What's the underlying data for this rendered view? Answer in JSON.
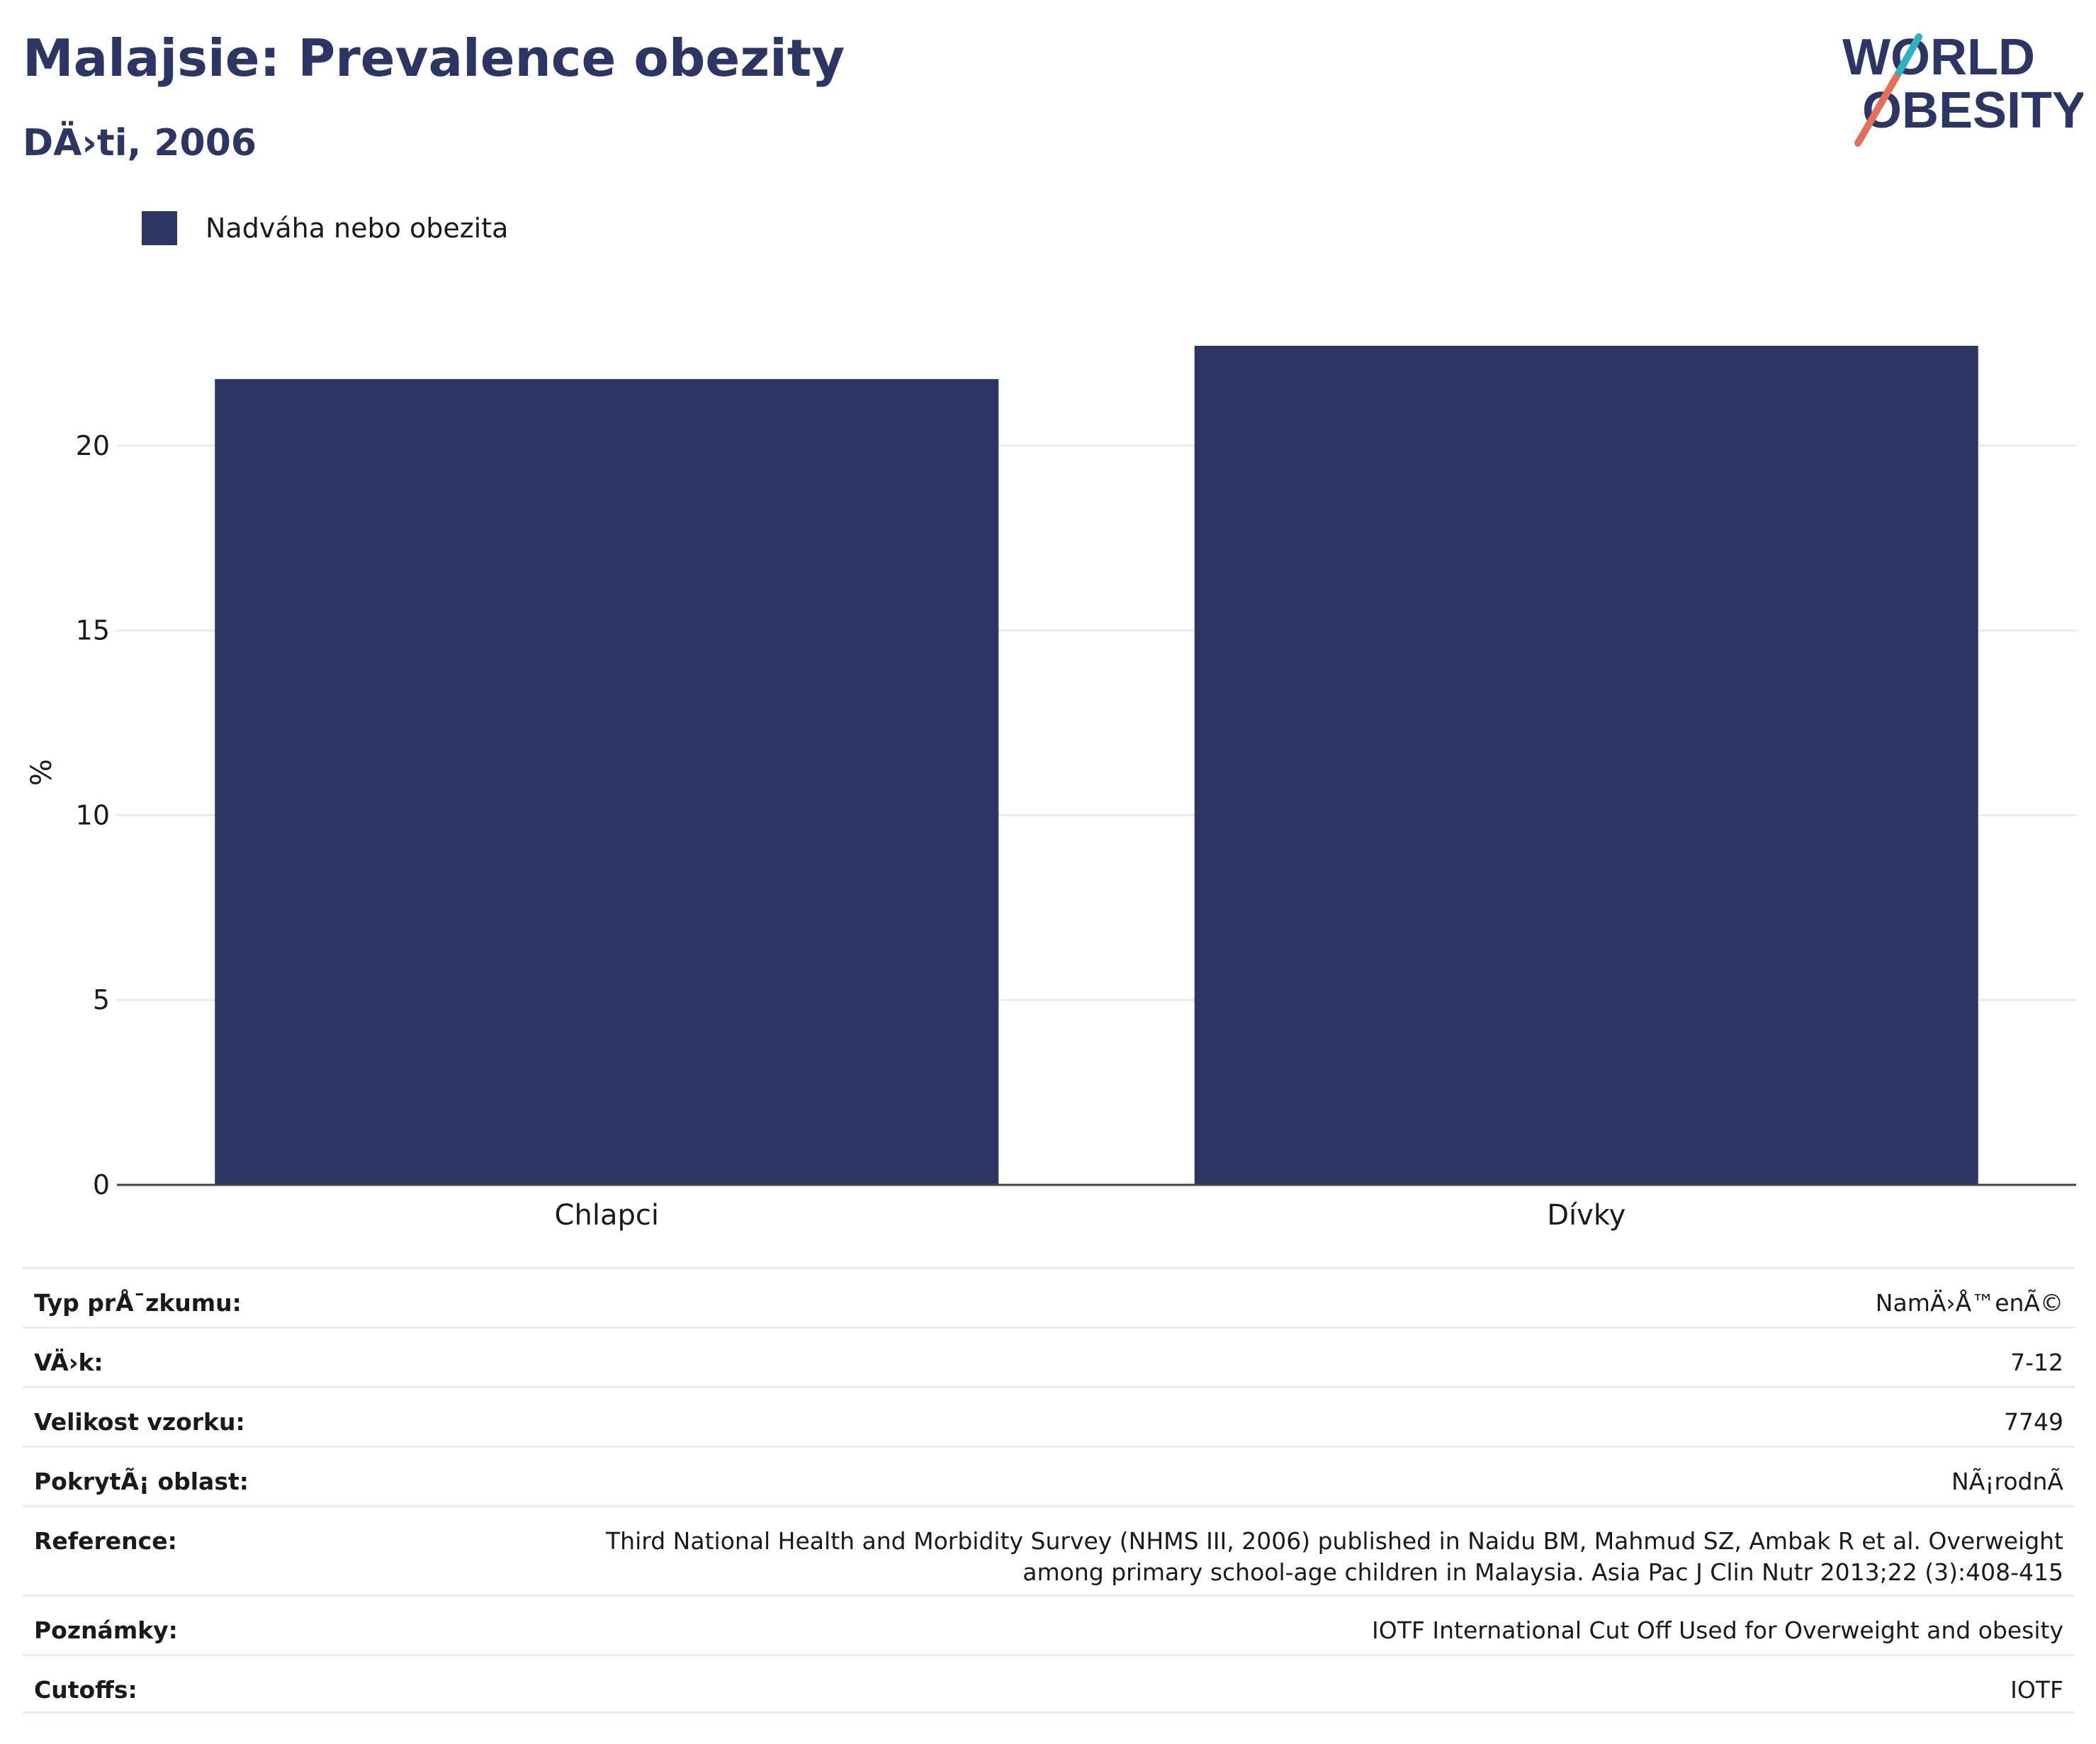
{
  "title": "Malajsie: Prevalence obezity",
  "subtitle": "DÄ›ti, 2006",
  "logo": {
    "line1": "WORLD",
    "line2": "OBESITY",
    "colors": [
      "#2b3664",
      "#e4705a",
      "#2bb3c0"
    ]
  },
  "legend": {
    "label": "Nadváha nebo obezita",
    "color": "#2b3664"
  },
  "chart_data": {
    "type": "bar",
    "categories": [
      "Chlapci",
      "Dívky"
    ],
    "series": [
      {
        "name": "Nadváha nebo obezita",
        "values": [
          21.8,
          22.7
        ],
        "color": "#2b3664"
      }
    ],
    "ylabel": "%",
    "xlabel": "",
    "ylim": [
      0,
      25
    ],
    "yticks": [
      0,
      5,
      10,
      15,
      20
    ],
    "grid": true,
    "legend_position": "top-left"
  },
  "meta": [
    {
      "label": "Typ prÅ¯zkumu:",
      "value": "NamÄ›Å™enÃ©"
    },
    {
      "label": "VÄ›k:",
      "value": "7-12"
    },
    {
      "label": "Velikost vzorku:",
      "value": "7749"
    },
    {
      "label": "PokrytÃ¡ oblast:",
      "value": "NÃ¡rodnÃ"
    },
    {
      "label": "Reference:",
      "value": "Third National Health and Morbidity Survey (NHMS III, 2006) published in Naidu BM, Mahmud SZ, Ambak R et al. Overweight among primary school-age children in Malaysia. Asia Pac J Clin Nutr 2013;22 (3):408-415"
    },
    {
      "label": "Poznámky:",
      "value": "IOTF International Cut Off Used for Overweight and obesity"
    },
    {
      "label": "Cutoffs:",
      "value": "IOTF"
    }
  ]
}
